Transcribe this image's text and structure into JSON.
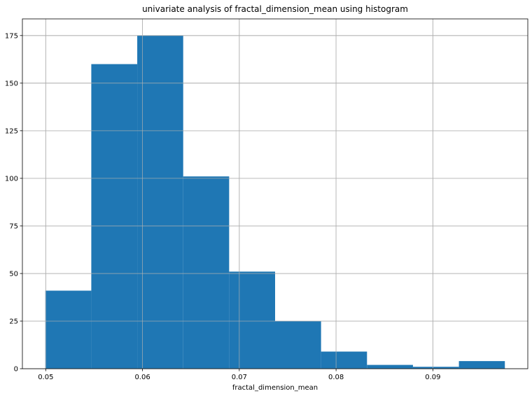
{
  "chart_data": {
    "type": "bar",
    "title": "univariate analysis of fractal_dimension_mean using histogram",
    "xlabel": "fractal_dimension_mean",
    "ylabel": "",
    "bin_edges": [
      0.04996,
      0.054708,
      0.059456,
      0.064204,
      0.068952,
      0.0737,
      0.078448,
      0.083196,
      0.087944,
      0.092692,
      0.09744
    ],
    "values": [
      41,
      160,
      175,
      101,
      51,
      25,
      9,
      2,
      1,
      4
    ],
    "xlim": [
      0.04759,
      0.09981
    ],
    "ylim": [
      0,
      183.75
    ],
    "xticks": [
      0.05,
      0.06,
      0.07,
      0.08,
      0.09
    ],
    "xtick_labels": [
      "0.05",
      "0.06",
      "0.07",
      "0.08",
      "0.09"
    ],
    "yticks": [
      0,
      25,
      50,
      75,
      100,
      125,
      150,
      175
    ],
    "ytick_labels": [
      "0",
      "25",
      "50",
      "75",
      "100",
      "125",
      "150",
      "175"
    ],
    "grid": true,
    "bar_color": "#1f77b4",
    "grid_color": "#b0b0b0"
  }
}
